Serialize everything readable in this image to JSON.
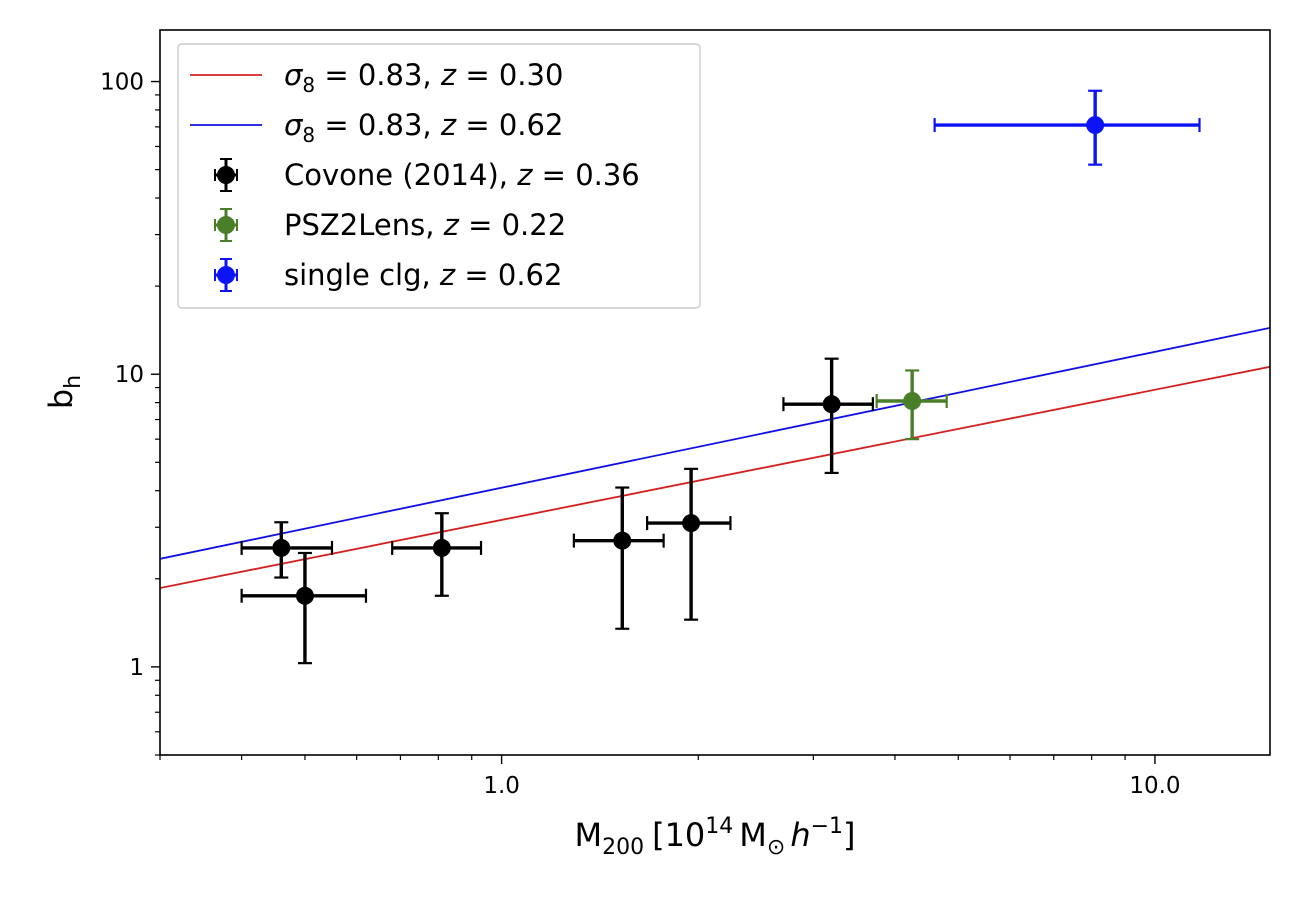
{
  "chart_data": {
    "type": "scatter",
    "x_scale": "log",
    "y_scale": "log",
    "xlim": [
      0.3,
      15.0
    ],
    "ylim": [
      0.5,
      150
    ],
    "xlabel": {
      "base": "M",
      "sub": "200",
      "bracket_open": "[10",
      "exp": "14",
      "unit": "M",
      "sun": "⊙",
      "h": "h",
      "hexp": "−1",
      "bracket_close": "]"
    },
    "ylabel": {
      "base": "b",
      "sub": "h"
    },
    "x_ticks": [
      {
        "value": 1.0,
        "label": "1.0"
      },
      {
        "value": 10.0,
        "label": "10.0"
      }
    ],
    "x_minor_ticks": [
      0.3,
      0.4,
      0.5,
      0.6,
      0.7,
      0.8,
      0.9,
      2,
      3,
      4,
      5,
      6,
      7,
      8,
      9
    ],
    "y_ticks": [
      {
        "value": 1,
        "label": "1"
      },
      {
        "value": 10,
        "label": "10"
      },
      {
        "value": 100,
        "label": "100"
      }
    ],
    "y_minor_ticks": [
      0.5,
      0.6,
      0.7,
      0.8,
      0.9,
      2,
      3,
      4,
      5,
      6,
      7,
      8,
      9,
      20,
      30,
      40,
      50,
      60,
      70,
      80,
      90
    ],
    "legend": {
      "placement": "top-left",
      "entries": [
        {
          "kind": "line",
          "color": "#d62020",
          "math": "σ",
          "sub": "8",
          "text": " = 0.83, ",
          "zvar": "z",
          "ztext": " = 0.30"
        },
        {
          "kind": "line",
          "color": "#1010e6",
          "math": "σ",
          "sub": "8",
          "text": " = 0.83, ",
          "zvar": "z",
          "ztext": " = 0.62"
        },
        {
          "kind": "errorbar",
          "color": "#000000",
          "text": "Covone (2014), ",
          "zvar": "z",
          "ztext": " = 0.36"
        },
        {
          "kind": "errorbar",
          "color": "#4a7f2a",
          "text": "PSZ2Lens, ",
          "zvar": "z",
          "ztext": " = 0.22"
        },
        {
          "kind": "errorbar",
          "color": "#0a14f5",
          "text": "single clg, ",
          "zvar": "z",
          "ztext": " = 0.62"
        }
      ]
    },
    "lines": [
      {
        "name": "sigma8=0.83, z=0.30",
        "color": "#d62020",
        "x_start": 0.3,
        "x_end": 15.0,
        "y_start": 1.86,
        "y_end": 10.6
      },
      {
        "name": "sigma8=0.83, z=0.62",
        "color": "#1010e6",
        "x_start": 0.3,
        "x_end": 15.0,
        "y_start": 2.34,
        "y_end": 14.4
      }
    ],
    "series": [
      {
        "name": "Covone (2014), z=0.36",
        "color": "#000000",
        "points": [
          {
            "x": 0.46,
            "xerr": [
              0.4,
              0.55
            ],
            "y": 2.55,
            "yerr": [
              2.02,
              3.12
            ]
          },
          {
            "x": 0.5,
            "xerr": [
              0.4,
              0.62
            ],
            "y": 1.75,
            "yerr": [
              1.03,
              2.45
            ]
          },
          {
            "x": 0.81,
            "xerr": [
              0.68,
              0.93
            ],
            "y": 2.55,
            "yerr": [
              1.75,
              3.35
            ]
          },
          {
            "x": 1.53,
            "xerr": [
              1.29,
              1.77
            ],
            "y": 2.7,
            "yerr": [
              1.35,
              4.1
            ]
          },
          {
            "x": 1.95,
            "xerr": [
              1.67,
              2.24
            ],
            "y": 3.1,
            "yerr": [
              1.45,
              4.75
            ]
          },
          {
            "x": 3.2,
            "xerr": [
              2.7,
              3.7
            ],
            "y": 7.9,
            "yerr": [
              4.6,
              11.3
            ]
          }
        ]
      },
      {
        "name": "PSZ2Lens, z=0.22",
        "color": "#4a7f2a",
        "points": [
          {
            "x": 4.25,
            "xerr": [
              3.75,
              4.8
            ],
            "y": 8.1,
            "yerr": [
              6.0,
              10.3
            ]
          }
        ]
      },
      {
        "name": "single clg, z=0.62",
        "color": "#0a14f5",
        "points": [
          {
            "x": 8.1,
            "xerr": [
              4.6,
              11.7
            ],
            "y": 71.0,
            "yerr": [
              52.0,
              93.0
            ]
          }
        ]
      }
    ]
  }
}
